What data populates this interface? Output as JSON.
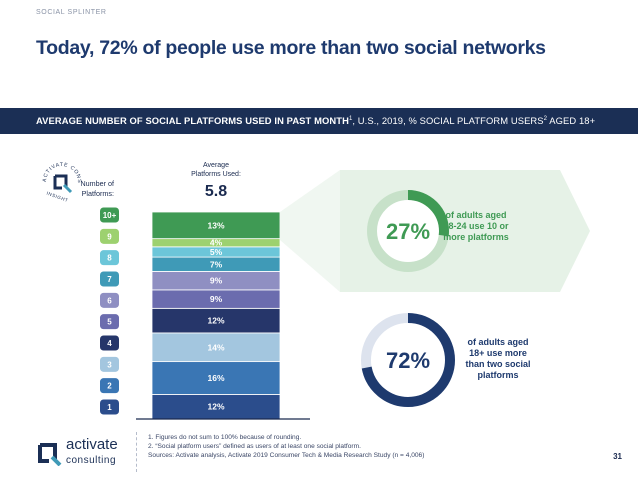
{
  "header": {
    "section": "SOCIAL SPLINTER",
    "title": "Today, 72% of people use more than two social networks"
  },
  "band": {
    "part1": "AVERAGE NUMBER OF SOCIAL PLATFORMS USED IN PAST MONTH",
    "sup1": "1",
    "part2": ", U.S., 2019, % SOCIAL PLATFORM USERS",
    "sup2": "2",
    "part3": " AGED 18+"
  },
  "chart_data": {
    "type": "bar",
    "subtype": "stacked-100",
    "axis_title": "Number of Platforms:",
    "average_label": "Average Platforms Used:",
    "average_value": "5.8",
    "categories": [
      "1",
      "2",
      "3",
      "4",
      "5",
      "6",
      "7",
      "8",
      "9",
      "10+"
    ],
    "values": [
      12,
      16,
      14,
      12,
      9,
      9,
      7,
      5,
      4,
      13
    ],
    "value_labels": [
      "12%",
      "16%",
      "14%",
      "12%",
      "9%",
      "9%",
      "7%",
      "5%",
      "4%",
      "13%"
    ],
    "colors": [
      "#2b4d8c",
      "#3a76b4",
      "#a3c6df",
      "#26366a",
      "#6b6cae",
      "#8f8fc2",
      "#3f9ab7",
      "#6cc6d9",
      "#9dd16f",
      "#3f9a54"
    ],
    "label_colors": [
      "#ffffff",
      "#ffffff",
      "#ffffff",
      "#ffffff",
      "#ffffff",
      "#ffffff",
      "#ffffff",
      "#ffffff",
      "#ffffff",
      "#ffffff"
    ],
    "callouts": [
      {
        "value": 27,
        "display": "27%",
        "text": "of adults aged 18-24 use 10 or more platforms",
        "ring_color": "#3f9a54",
        "track_color": "#c7e1c9",
        "text_color": "#3f9a54"
      },
      {
        "value": 72,
        "display": "72%",
        "text": "of adults aged 18+ use more than two social platforms",
        "ring_color": "#1e3a6e",
        "track_color": "#dde3ee",
        "text_color": "#1e3a6e"
      }
    ]
  },
  "footnotes": [
    "1. Figures do not sum to 100% because of rounding.",
    "2. “Social platform users” defined as users of at least one social platform.",
    "Sources: Activate analysis, Activate 2019 Consumer Tech & Media Research Study (n = 4,006)"
  ],
  "logo": {
    "word1": "activate",
    "word2": "consulting",
    "seal_text": "ACTIVATE CONSUMER INSIGHT"
  },
  "page_number": "31"
}
